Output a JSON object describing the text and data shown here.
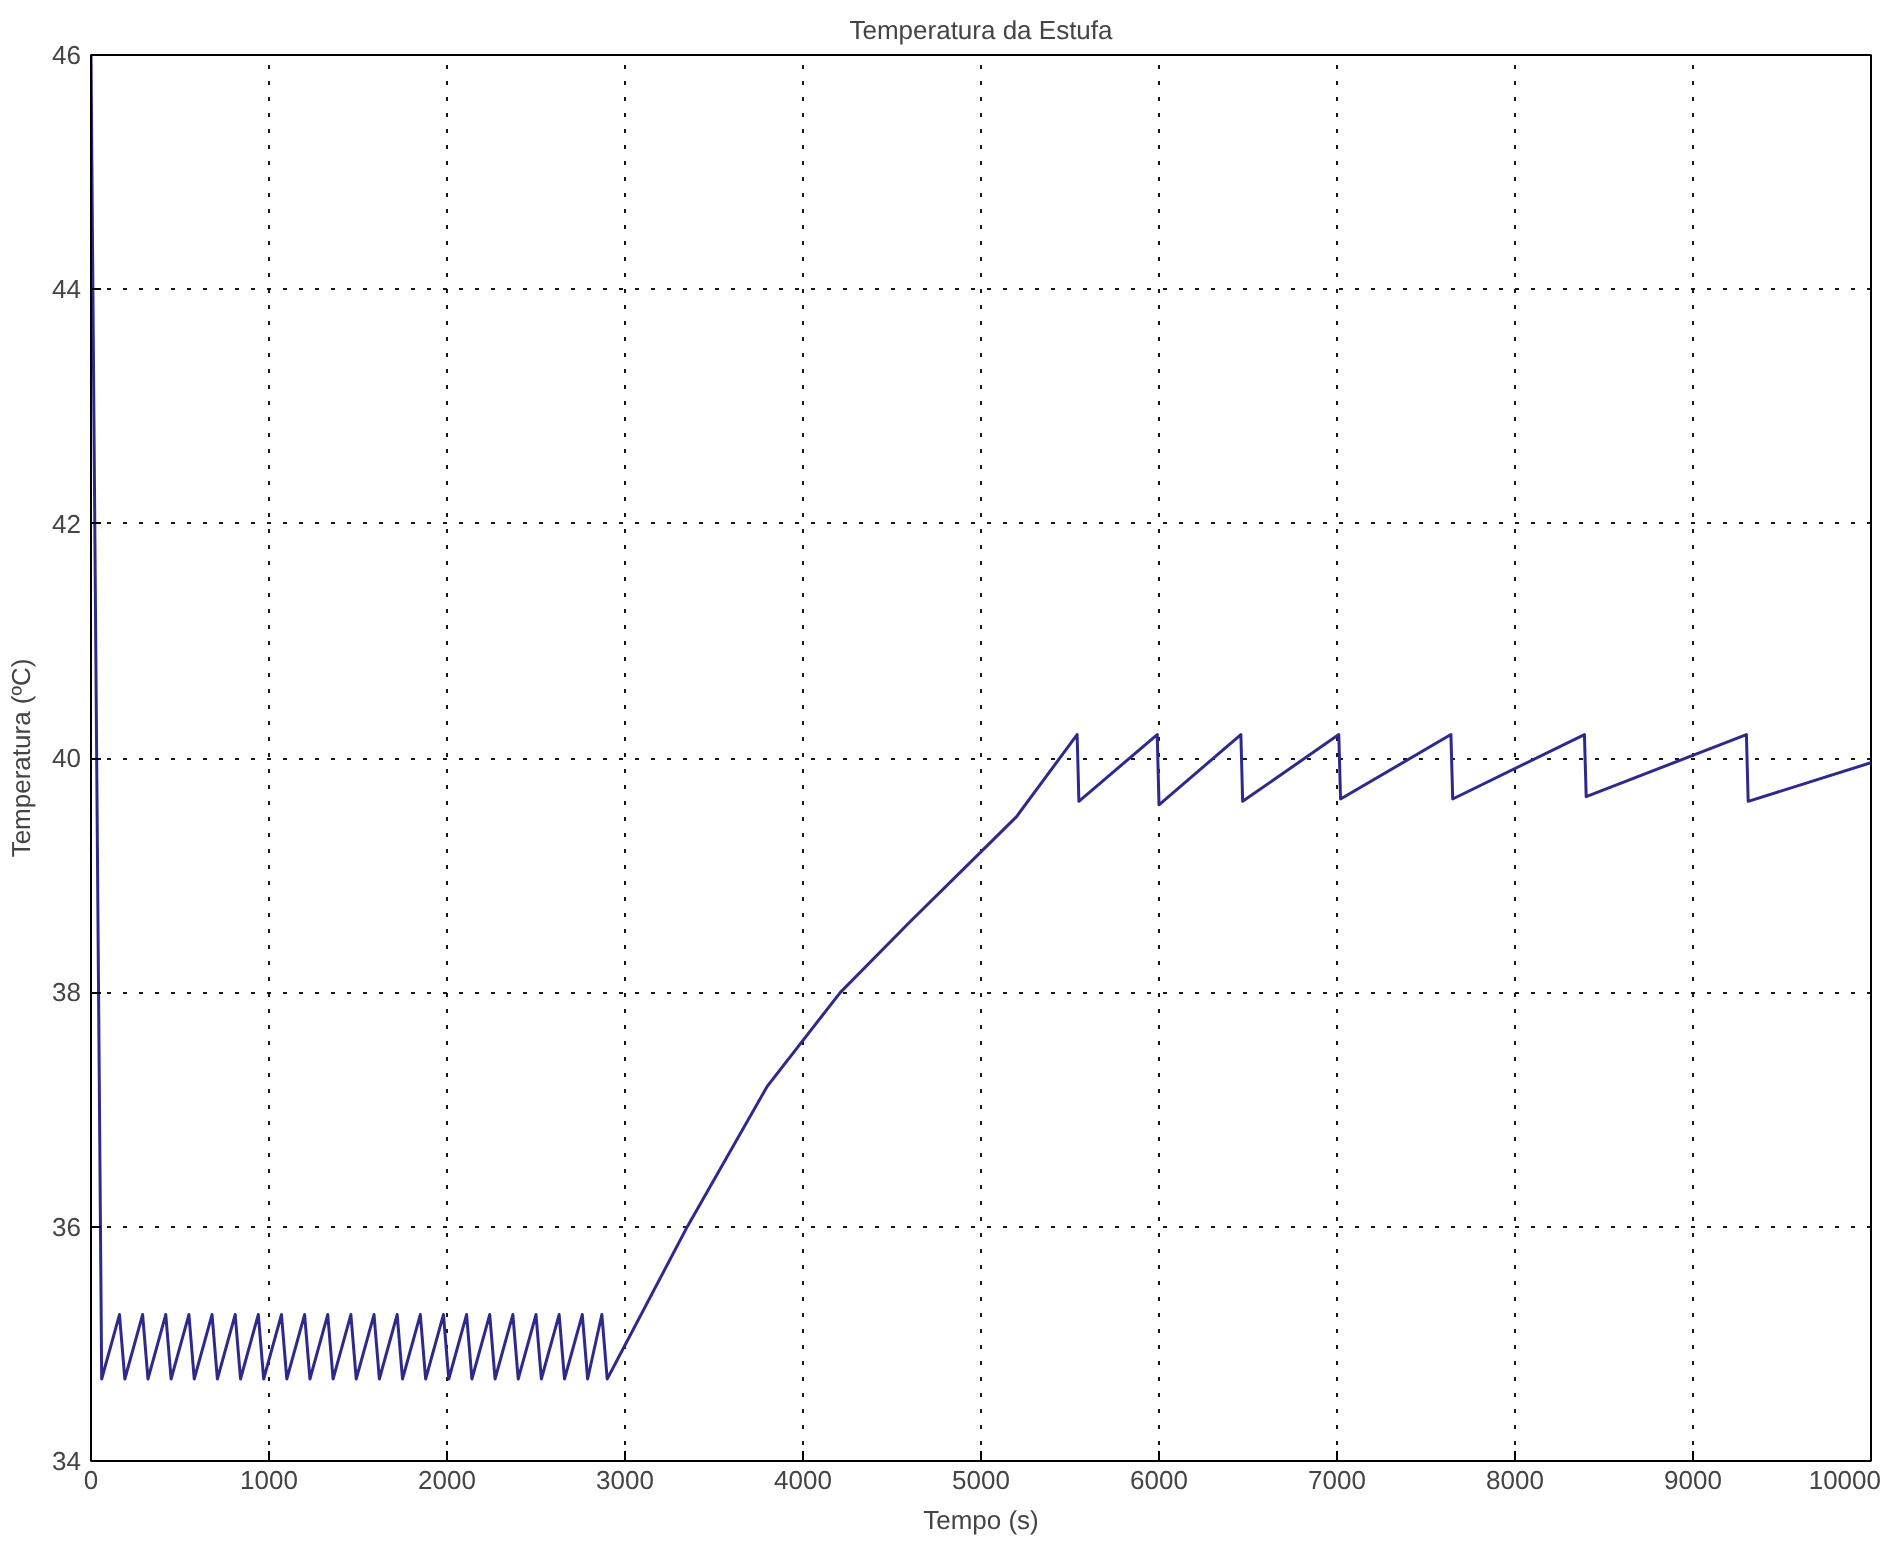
{
  "chart_data": {
    "type": "line",
    "title": "Temperatura da Estufa",
    "xlabel": "Tempo (s)",
    "ylabel": "Temperatura (ºC)",
    "xlim": [
      0,
      10000
    ],
    "xticks": [
      0,
      1000,
      2000,
      3000,
      4000,
      5000,
      6000,
      7000,
      8000,
      9000,
      10000
    ],
    "ylim": [
      34,
      46
    ],
    "yticks": [
      34,
      36,
      38,
      40,
      42,
      44,
      46
    ],
    "grid": true,
    "line_style": "solid",
    "series": [
      {
        "color": "#2e2a8c",
        "x": [
          0,
          60,
          160,
          190,
          290,
          320,
          420,
          450,
          550,
          580,
          680,
          710,
          810,
          840,
          940,
          970,
          1070,
          1100,
          1200,
          1230,
          1330,
          1360,
          1460,
          1490,
          1590,
          1620,
          1720,
          1750,
          1850,
          1880,
          1980,
          2010,
          2110,
          2140,
          2240,
          2270,
          2370,
          2400,
          2500,
          2530,
          2630,
          2660,
          2760,
          2790,
          2870,
          2900,
          3350,
          3800,
          4210,
          4600,
          4900,
          5200,
          5540,
          5550,
          5990,
          6000,
          6460,
          6470,
          7010,
          7020,
          7640,
          7650,
          8390,
          8400,
          9300,
          9310,
          10000
        ],
        "values": [
          46,
          34.7,
          35.25,
          34.7,
          35.25,
          34.7,
          35.25,
          34.7,
          35.25,
          34.7,
          35.25,
          34.7,
          35.25,
          34.7,
          35.25,
          34.7,
          35.25,
          34.7,
          35.25,
          34.7,
          35.25,
          34.7,
          35.25,
          34.7,
          35.25,
          34.7,
          35.25,
          34.7,
          35.25,
          34.7,
          35.25,
          34.7,
          35.25,
          34.7,
          35.25,
          34.7,
          35.25,
          34.7,
          35.25,
          34.7,
          35.25,
          34.7,
          35.25,
          34.7,
          35.25,
          34.7,
          36,
          37.2,
          38,
          38.6,
          39.05,
          39.5,
          40.2,
          39.63,
          40.2,
          39.6,
          40.2,
          39.63,
          40.2,
          39.65,
          40.2,
          39.65,
          40.2,
          39.67,
          40.2,
          39.63,
          39.96
        ]
      }
    ]
  }
}
